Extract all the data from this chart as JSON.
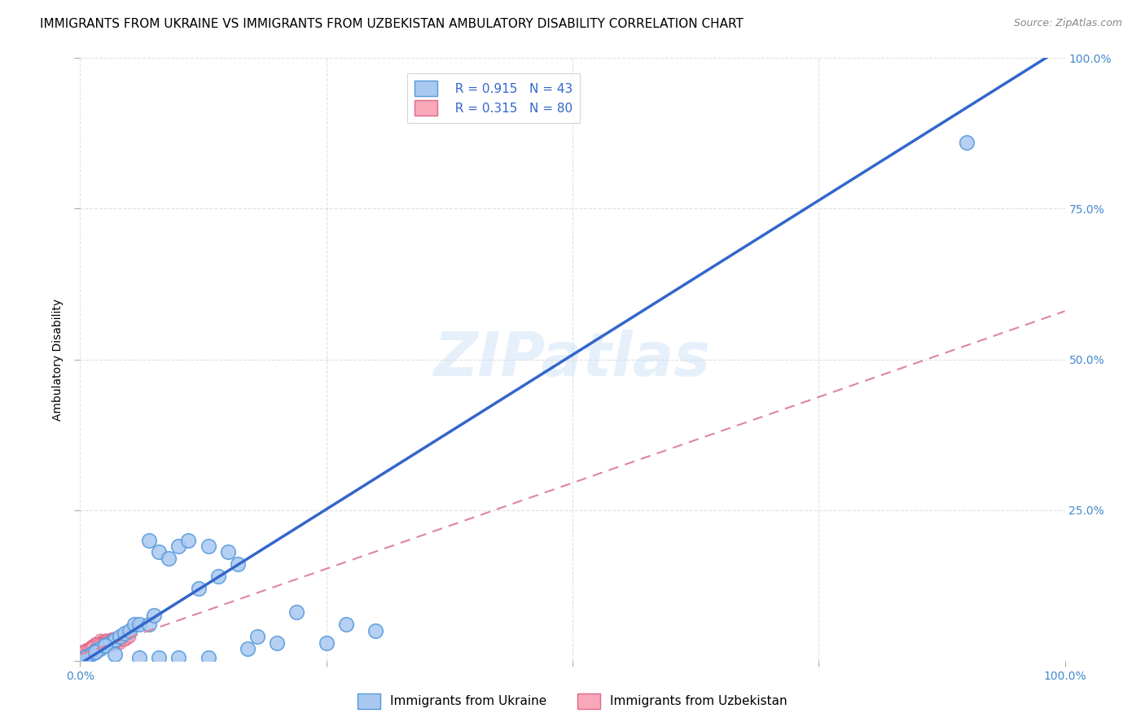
{
  "title": "IMMIGRANTS FROM UKRAINE VS IMMIGRANTS FROM UZBEKISTAN AMBULATORY DISABILITY CORRELATION CHART",
  "source": "Source: ZipAtlas.com",
  "ylabel": "Ambulatory Disability",
  "xlim": [
    0,
    1.0
  ],
  "ylim": [
    0,
    1.0
  ],
  "ukraine_color": "#a8c8f0",
  "ukraine_edge": "#5599dd",
  "uzbekistan_color": "#f8a8b8",
  "uzbekistan_edge": "#dd6688",
  "ukraine_line_color": "#3366cc",
  "uzbekistan_line_color": "#dd8899",
  "ukraine_R": 0.915,
  "ukraine_N": 43,
  "uzbekistan_R": 0.315,
  "uzbekistan_N": 80,
  "ukraine_line_x0": 0.0,
  "ukraine_line_y0": -0.005,
  "ukraine_line_x1": 1.0,
  "ukraine_line_y1": 1.02,
  "uzbekistan_line_x0": 0.0,
  "uzbekistan_line_y0": 0.01,
  "uzbekistan_line_x1": 1.0,
  "uzbekistan_line_y1": 0.58,
  "ukraine_scatter_x": [
    0.005,
    0.008,
    0.01,
    0.012,
    0.015,
    0.018,
    0.02,
    0.025,
    0.03,
    0.035,
    0.04,
    0.045,
    0.05,
    0.055,
    0.06,
    0.07,
    0.075,
    0.08,
    0.09,
    0.1,
    0.11,
    0.12,
    0.13,
    0.14,
    0.15,
    0.16,
    0.17,
    0.18,
    0.2,
    0.22,
    0.25,
    0.27,
    0.3,
    0.005,
    0.015,
    0.025,
    0.035,
    0.06,
    0.08,
    0.1,
    0.13,
    0.9,
    0.07
  ],
  "ukraine_scatter_y": [
    0.005,
    0.008,
    0.01,
    0.012,
    0.015,
    0.018,
    0.02,
    0.025,
    0.03,
    0.035,
    0.04,
    0.045,
    0.05,
    0.06,
    0.06,
    0.06,
    0.075,
    0.18,
    0.17,
    0.19,
    0.2,
    0.12,
    0.19,
    0.14,
    0.18,
    0.16,
    0.02,
    0.04,
    0.03,
    0.08,
    0.03,
    0.06,
    0.05,
    0.005,
    0.015,
    0.025,
    0.01,
    0.005,
    0.005,
    0.005,
    0.005,
    0.86,
    0.2
  ],
  "uzbekistan_scatter_x": [
    0.0,
    0.002,
    0.003,
    0.005,
    0.005,
    0.007,
    0.008,
    0.01,
    0.01,
    0.012,
    0.012,
    0.015,
    0.015,
    0.015,
    0.018,
    0.018,
    0.02,
    0.02,
    0.02,
    0.022,
    0.022,
    0.025,
    0.025,
    0.025,
    0.028,
    0.028,
    0.03,
    0.03,
    0.03,
    0.033,
    0.033,
    0.035,
    0.035,
    0.038,
    0.038,
    0.04,
    0.04,
    0.042,
    0.045,
    0.045,
    0.048,
    0.05,
    0.005,
    0.01,
    0.015,
    0.02,
    0.025,
    0.0,
    0.003,
    0.006,
    0.008,
    0.01,
    0.013,
    0.016,
    0.019,
    0.022,
    0.025,
    0.028,
    0.031,
    0.034,
    0.0,
    0.004,
    0.008,
    0.012,
    0.016,
    0.02,
    0.024,
    0.028,
    0.032,
    0.036,
    0.0,
    0.003,
    0.006,
    0.009,
    0.012,
    0.015,
    0.018,
    0.021,
    0.024,
    0.027
  ],
  "uzbekistan_scatter_y": [
    0.005,
    0.008,
    0.01,
    0.012,
    0.018,
    0.015,
    0.02,
    0.018,
    0.022,
    0.025,
    0.015,
    0.02,
    0.025,
    0.03,
    0.022,
    0.028,
    0.025,
    0.03,
    0.035,
    0.028,
    0.032,
    0.025,
    0.03,
    0.035,
    0.028,
    0.035,
    0.025,
    0.03,
    0.035,
    0.03,
    0.038,
    0.028,
    0.035,
    0.03,
    0.038,
    0.03,
    0.038,
    0.035,
    0.035,
    0.042,
    0.038,
    0.04,
    0.015,
    0.02,
    0.025,
    0.03,
    0.035,
    0.01,
    0.015,
    0.012,
    0.018,
    0.022,
    0.025,
    0.02,
    0.028,
    0.025,
    0.032,
    0.028,
    0.035,
    0.03,
    0.008,
    0.012,
    0.018,
    0.022,
    0.028,
    0.025,
    0.03,
    0.028,
    0.035,
    0.032,
    0.01,
    0.015,
    0.012,
    0.018,
    0.022,
    0.02,
    0.025,
    0.022,
    0.028,
    0.025
  ],
  "watermark": "ZIPatlas",
  "background_color": "#ffffff",
  "grid_color": "#dddddd",
  "title_fontsize": 11,
  "label_fontsize": 10,
  "tick_color": "#4488cc",
  "right_tick_color": "#4488cc",
  "y_tick_positions": [
    0.0,
    0.25,
    0.5,
    0.75,
    1.0
  ],
  "y_tick_labels": [
    "",
    "25.0%",
    "50.0%",
    "75.0%",
    "100.0%"
  ],
  "x_tick_positions": [
    0.0,
    0.25,
    0.5,
    0.75,
    1.0
  ],
  "x_tick_labels_bottom": [
    "0.0%",
    "",
    "",
    "",
    "100.0%"
  ]
}
